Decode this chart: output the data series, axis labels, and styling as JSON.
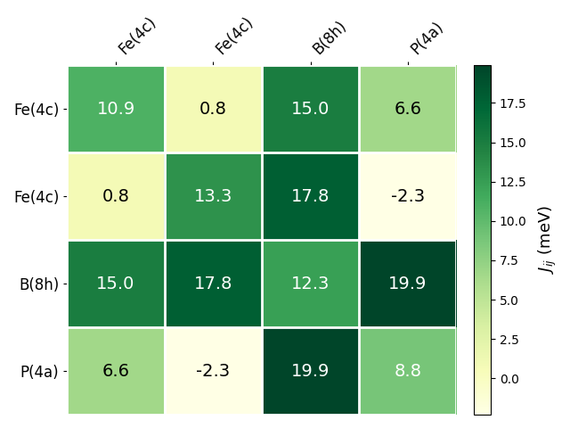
{
  "labels": [
    "Fe(4c)",
    "Fe(4c)",
    "B(8h)",
    "P(4a)"
  ],
  "matrix": [
    [
      10.9,
      0.8,
      15.0,
      6.6
    ],
    [
      0.8,
      13.3,
      17.8,
      -2.3
    ],
    [
      15.0,
      17.8,
      12.3,
      19.9
    ],
    [
      6.6,
      -2.3,
      19.9,
      8.8
    ]
  ],
  "colorbar_label": "$J_{ij}$ (meV)",
  "vmin": -2.3,
  "vmax": 19.9,
  "cmap": "YlGn",
  "figsize": [
    6.4,
    4.8
  ],
  "dpi": 100,
  "fontsize_annotations": 14,
  "fontsize_labels": 12,
  "fontsize_colorbar": 13,
  "colorbar_ticks": [
    0.0,
    2.5,
    5.0,
    7.5,
    10.0,
    12.5,
    15.0,
    17.5
  ]
}
